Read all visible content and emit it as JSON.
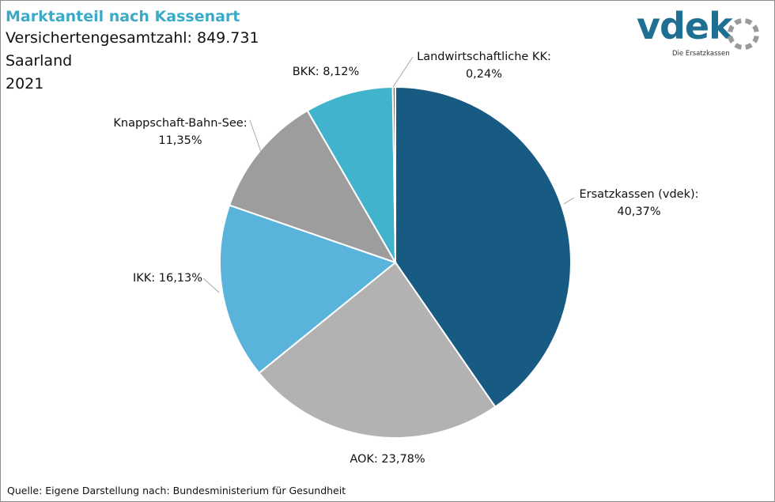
{
  "header": {
    "title": "Marktanteil nach Kassenart",
    "lines": [
      "Versichertengesamtzahl: 849.731",
      "Saarland",
      "2021"
    ]
  },
  "logo": {
    "wordmark": "vdek",
    "tagline": "Die Ersatzkassen",
    "colors": {
      "wordmark": "#1f6f93",
      "ring": "#9a9a9a"
    }
  },
  "source": "Quelle: Eigene Darstellung nach: Bundesministerium für Gesundheit",
  "chart_data": {
    "type": "pie",
    "title": "Marktanteil nach Kassenart",
    "start_angle_deg": 0,
    "direction": "clockwise",
    "slices": [
      {
        "name": "Ersatzkassen (vdek)",
        "value": 40.37,
        "label": "Ersatzkassen (vdek):",
        "value_label": "40,37%",
        "color": "#175a82"
      },
      {
        "name": "AOK",
        "value": 23.78,
        "label": "AOK: 23,78%",
        "value_label": "",
        "color": "#b2b2b2"
      },
      {
        "name": "IKK",
        "value": 16.13,
        "label": "IKK: 16,13%",
        "value_label": "",
        "color": "#5ab3da"
      },
      {
        "name": "Knappschaft-Bahn-See",
        "value": 11.35,
        "label": "Knappschaft-Bahn-See:",
        "value_label": "11,35%",
        "color": "#9d9d9d"
      },
      {
        "name": "BKK",
        "value": 8.12,
        "label": "BKK: 8,12%",
        "value_label": "",
        "color": "#42b3cc"
      },
      {
        "name": "Landwirtschaftliche KK",
        "value": 0.24,
        "label": "Landwirtschaftliche KK:",
        "value_label": "0,24%",
        "color": "#6e6e6e"
      }
    ]
  }
}
